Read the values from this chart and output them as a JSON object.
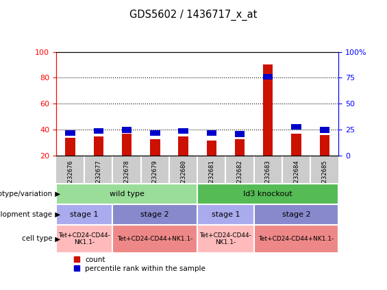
{
  "title": "GDS5602 / 1436717_x_at",
  "samples": [
    "GSM1232676",
    "GSM1232677",
    "GSM1232678",
    "GSM1232679",
    "GSM1232680",
    "GSM1232681",
    "GSM1232682",
    "GSM1232683",
    "GSM1232684",
    "GSM1232685"
  ],
  "red_values": [
    34,
    35,
    37,
    33,
    35,
    32,
    33,
    90,
    37,
    36
  ],
  "blue_values": [
    22,
    24,
    25,
    22,
    24,
    22,
    21,
    76,
    28,
    25
  ],
  "ylim_left": [
    20,
    100
  ],
  "ylim_right": [
    0,
    100
  ],
  "left_ticks": [
    20,
    40,
    60,
    80,
    100
  ],
  "right_ticks": [
    0,
    25,
    50,
    75,
    100
  ],
  "right_tick_labels": [
    "0",
    "25",
    "50",
    "75",
    "100%"
  ],
  "grid_values": [
    40,
    60,
    80
  ],
  "bar_color": "#cc1100",
  "blue_color": "#0000cc",
  "bar_width": 0.35,
  "genotype_groups": [
    {
      "name": "wild type",
      "start": 0,
      "end": 5,
      "color": "#99dd99"
    },
    {
      "name": "Id3 knockout",
      "start": 5,
      "end": 10,
      "color": "#55bb55"
    }
  ],
  "stage_groups": [
    {
      "name": "stage 1",
      "start": 0,
      "end": 2,
      "color": "#aaaaee"
    },
    {
      "name": "stage 2",
      "start": 2,
      "end": 5,
      "color": "#8888cc"
    },
    {
      "name": "stage 1",
      "start": 5,
      "end": 7,
      "color": "#aaaaee"
    },
    {
      "name": "stage 2",
      "start": 7,
      "end": 10,
      "color": "#8888cc"
    }
  ],
  "celltype_groups": [
    {
      "name": "Tet+CD24-CD44-\nNK1.1-",
      "start": 0,
      "end": 2,
      "color": "#ffbbbb"
    },
    {
      "name": "Tet+CD24-CD44+NK1.1-",
      "start": 2,
      "end": 5,
      "color": "#ee8888"
    },
    {
      "name": "Tet+CD24-CD44-\nNK1.1-",
      "start": 5,
      "end": 7,
      "color": "#ffbbbb"
    },
    {
      "name": "Tet+CD24-CD44+NK1.1-",
      "start": 7,
      "end": 10,
      "color": "#ee8888"
    }
  ],
  "genotype_label": "genotype/variation",
  "stage_label": "development stage",
  "celltype_label": "cell type",
  "legend_red": "count",
  "legend_blue": "percentile rank within the sample",
  "sample_area_color": "#cccccc"
}
